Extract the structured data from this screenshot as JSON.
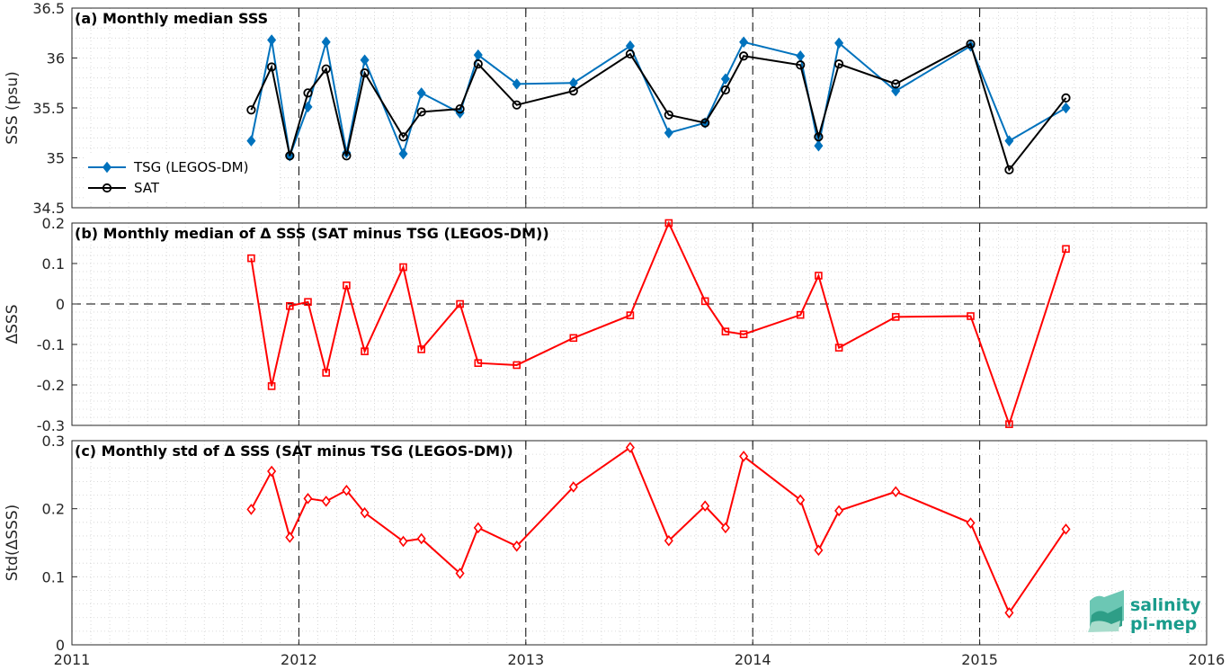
{
  "chart_data": [
    {
      "type": "line",
      "title": "(a) Monthly median SSS",
      "ylabel": "SSS (psu)",
      "ylim": [
        34.5,
        36.5
      ],
      "yticks": [
        "34.5",
        "35",
        "35.5",
        "36",
        "36.5"
      ],
      "xlim": [
        2011,
        2016
      ],
      "xticks": [
        "2011",
        "2012",
        "2013",
        "2014",
        "2015",
        "2016"
      ],
      "grid": "dotted minor grid, dashed vertical lines at year boundaries",
      "legend_placement": "lower-left",
      "series": [
        {
          "name": "TSG (LEGOS-DM)",
          "color": "#0072BD",
          "marker": "diamond",
          "x": [
            2011.79,
            2011.88,
            2011.96,
            2012.04,
            2012.12,
            2012.21,
            2012.29,
            2012.46,
            2012.54,
            2012.71,
            2012.79,
            2012.96,
            2013.21,
            2013.46,
            2013.63,
            2013.79,
            2013.88,
            2013.96,
            2014.21,
            2014.29,
            2014.38,
            2014.63,
            2014.96,
            2015.13,
            2015.38
          ],
          "values": [
            35.17,
            36.18,
            35.02,
            35.51,
            36.16,
            35.05,
            35.98,
            35.04,
            35.65,
            35.45,
            36.03,
            35.74,
            35.75,
            36.12,
            35.25,
            35.35,
            35.79,
            36.16,
            36.02,
            35.12,
            36.15,
            35.67,
            36.12,
            35.17,
            35.5
          ]
        },
        {
          "name": "SAT",
          "color": "#000000",
          "marker": "circle",
          "x": [
            2011.79,
            2011.88,
            2011.96,
            2012.04,
            2012.12,
            2012.21,
            2012.29,
            2012.46,
            2012.54,
            2012.71,
            2012.79,
            2012.96,
            2013.21,
            2013.46,
            2013.63,
            2013.79,
            2013.88,
            2013.96,
            2014.21,
            2014.29,
            2014.38,
            2014.63,
            2014.96,
            2015.13,
            2015.38
          ],
          "values": [
            35.48,
            35.91,
            35.02,
            35.65,
            35.89,
            35.02,
            35.85,
            35.21,
            35.46,
            35.49,
            35.94,
            35.53,
            35.67,
            36.04,
            35.43,
            35.35,
            35.68,
            36.02,
            35.93,
            35.21,
            35.94,
            35.74,
            36.14,
            34.88,
            35.6
          ]
        }
      ]
    },
    {
      "type": "line",
      "title": "(b) Monthly median of Δ SSS (SAT minus TSG (LEGOS-DM))",
      "ylabel": "ΔSSS",
      "ylim": [
        -0.3,
        0.2
      ],
      "yticks": [
        "-0.3",
        "-0.2",
        "-0.1",
        "0",
        "0.1",
        "0.2"
      ],
      "xlim": [
        2011,
        2016
      ],
      "grid": "dotted minor grid, dashed zero line",
      "series": [
        {
          "color": "#FF0000",
          "marker": "square",
          "x": [
            2011.79,
            2011.88,
            2011.96,
            2012.04,
            2012.12,
            2012.21,
            2012.29,
            2012.46,
            2012.54,
            2012.71,
            2012.79,
            2012.96,
            2013.21,
            2013.46,
            2013.63,
            2013.79,
            2013.88,
            2013.96,
            2014.21,
            2014.29,
            2014.38,
            2014.63,
            2014.96,
            2015.13,
            2015.38
          ],
          "values": [
            0.113,
            -0.203,
            -0.005,
            0.005,
            -0.17,
            0.046,
            -0.117,
            0.091,
            -0.112,
            0.0,
            -0.146,
            -0.151,
            -0.084,
            -0.028,
            0.2,
            0.007,
            -0.068,
            -0.075,
            -0.027,
            0.07,
            -0.108,
            -0.032,
            -0.03,
            -0.297,
            0.136
          ]
        }
      ]
    },
    {
      "type": "line",
      "title": "(c) Monthly std of Δ SSS (SAT minus TSG (LEGOS-DM))",
      "ylabel": "Std(ΔSSS)",
      "ylim": [
        0,
        0.3
      ],
      "yticks": [
        "0",
        "0.1",
        "0.2",
        "0.3"
      ],
      "xlim": [
        2011,
        2016
      ],
      "xticks": [
        "2011",
        "2012",
        "2013",
        "2014",
        "2015",
        "2016"
      ],
      "series": [
        {
          "color": "#FF0000",
          "marker": "diamond",
          "x": [
            2011.79,
            2011.88,
            2011.96,
            2012.04,
            2012.12,
            2012.21,
            2012.29,
            2012.46,
            2012.54,
            2012.71,
            2012.79,
            2012.96,
            2013.21,
            2013.46,
            2013.63,
            2013.79,
            2013.88,
            2013.96,
            2014.21,
            2014.29,
            2014.38,
            2014.63,
            2014.96,
            2015.13,
            2015.38
          ],
          "values": [
            0.199,
            0.255,
            0.158,
            0.215,
            0.211,
            0.227,
            0.194,
            0.152,
            0.156,
            0.105,
            0.172,
            0.145,
            0.232,
            0.29,
            0.153,
            0.204,
            0.172,
            0.277,
            0.213,
            0.139,
            0.197,
            0.225,
            0.179,
            0.047,
            0.17
          ]
        }
      ]
    }
  ],
  "logo": {
    "line1": "salinity",
    "line2": "pi-mep",
    "color": "#1a9c8c"
  }
}
